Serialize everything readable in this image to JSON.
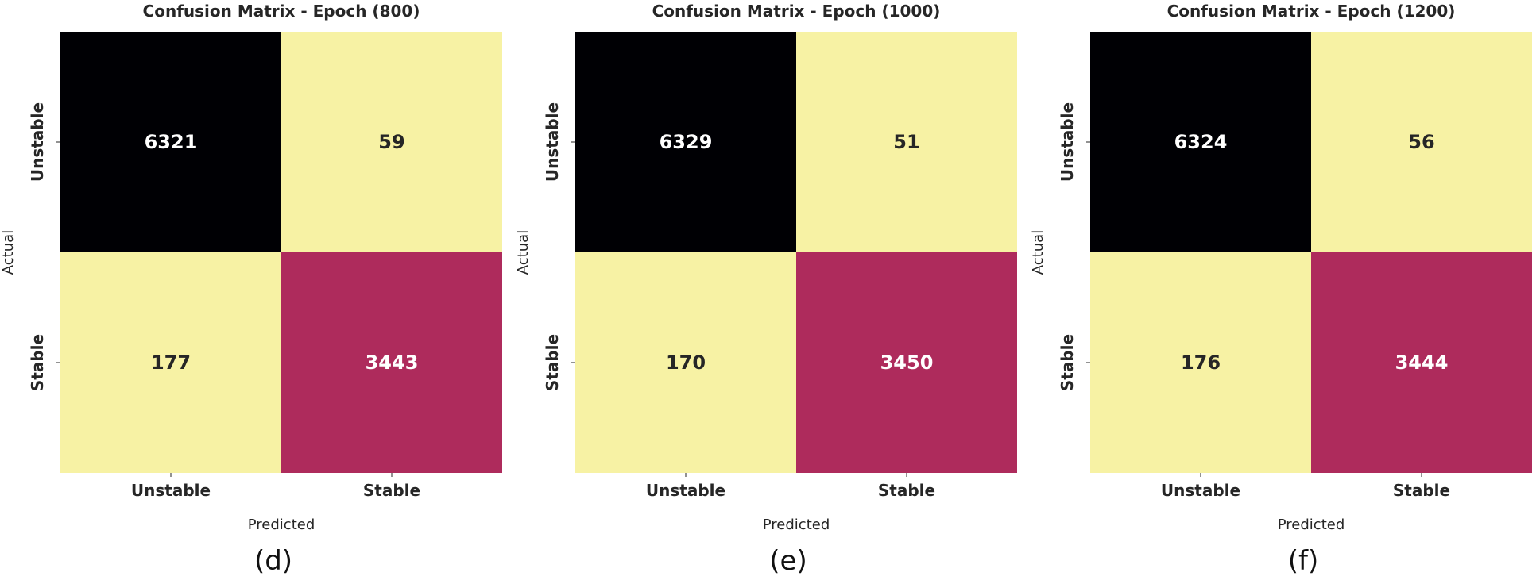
{
  "chart_data": [
    {
      "type": "heatmap",
      "title": "Confusion Matrix - Epoch (800)",
      "xlabel": "Predicted",
      "ylabel": "Actual",
      "x_categories": [
        "Unstable",
        "Stable"
      ],
      "y_categories": [
        "Unstable",
        "Stable"
      ],
      "values": [
        [
          6321,
          59
        ],
        [
          177,
          3443
        ]
      ],
      "panel_label": "(d)"
    },
    {
      "type": "heatmap",
      "title": "Confusion Matrix - Epoch (1000)",
      "xlabel": "Predicted",
      "ylabel": "Actual",
      "x_categories": [
        "Unstable",
        "Stable"
      ],
      "y_categories": [
        "Unstable",
        "Stable"
      ],
      "values": [
        [
          6329,
          51
        ],
        [
          170,
          3450
        ]
      ],
      "panel_label": "(e)"
    },
    {
      "type": "heatmap",
      "title": "Confusion Matrix - Epoch (1200)",
      "xlabel": "Predicted",
      "ylabel": "Actual",
      "x_categories": [
        "Unstable",
        "Stable"
      ],
      "y_categories": [
        "Unstable",
        "Stable"
      ],
      "values": [
        [
          6324,
          56
        ],
        [
          176,
          3444
        ]
      ],
      "panel_label": "(f)"
    }
  ],
  "colors": {
    "high": "#000004",
    "mid": "#ae2b5c",
    "low": "#f7f2a4",
    "text_dark": "#262626",
    "text_light": "#ffffff"
  }
}
